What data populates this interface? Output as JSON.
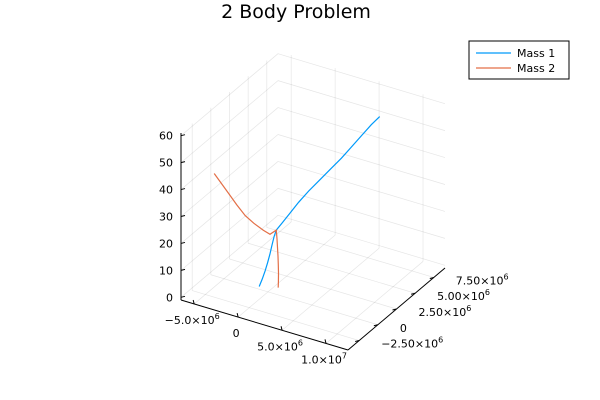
{
  "chart_data": {
    "type": "line3d",
    "title": "2 Body Problem",
    "xlabel": "",
    "ylabel": "",
    "zlabel": "",
    "x_ticks": [
      {
        "value": -5000000,
        "label": "−5.0×10",
        "exp": "6"
      },
      {
        "value": 0,
        "label": "0",
        "exp": ""
      },
      {
        "value": 5000000,
        "label": "5.0×10",
        "exp": "6"
      },
      {
        "value": 10000000,
        "label": "1.0×10",
        "exp": "7"
      }
    ],
    "y_ticks": [
      {
        "value": -2500000,
        "label": "−2.50×10",
        "exp": "6"
      },
      {
        "value": 0,
        "label": "0",
        "exp": ""
      },
      {
        "value": 2500000,
        "label": "2.50×10",
        "exp": "6"
      },
      {
        "value": 5000000,
        "label": "5.00×10",
        "exp": "6"
      },
      {
        "value": 7500000,
        "label": "7.50×10",
        "exp": "6"
      }
    ],
    "z_ticks": [
      {
        "value": 0,
        "label": "0"
      },
      {
        "value": 10,
        "label": "10"
      },
      {
        "value": 20,
        "label": "20"
      },
      {
        "value": 30,
        "label": "30"
      },
      {
        "value": 40,
        "label": "40"
      },
      {
        "value": 50,
        "label": "50"
      },
      {
        "value": 60,
        "label": "60"
      }
    ],
    "xlim": [
      -6500000,
      12500000
    ],
    "ylim": [
      -4000000,
      9000000
    ],
    "zlim": [
      -1,
      61
    ],
    "grid": true,
    "legend": "top-right",
    "series": [
      {
        "name": "Mass 1",
        "color": "#009AFA",
        "points": [
          [
            -1000000,
            0,
            0
          ],
          [
            -700000,
            60000,
            3
          ],
          [
            -450000,
            150000,
            6
          ],
          [
            -250000,
            250000,
            9
          ],
          [
            -100000,
            380000,
            12
          ],
          [
            10000,
            520000,
            15
          ],
          [
            100000,
            700000,
            18
          ],
          [
            180000,
            900000,
            20
          ],
          [
            500000,
            1300000,
            22
          ],
          [
            1000000,
            1700000,
            25
          ],
          [
            1700000,
            2100000,
            29
          ],
          [
            2500000,
            2500000,
            33
          ],
          [
            3400000,
            2900000,
            37
          ],
          [
            4300000,
            3300000,
            41
          ],
          [
            5200000,
            3700000,
            45
          ],
          [
            6000000,
            4100000,
            49
          ],
          [
            6800000,
            4500000,
            53
          ],
          [
            7600000,
            4900000,
            57
          ],
          [
            8300000,
            5200000,
            60
          ]
        ]
      },
      {
        "name": "Mass 2",
        "color": "#E36F47",
        "points": [
          [
            -4500000,
            -1900000,
            43
          ],
          [
            -3900000,
            -1600000,
            39
          ],
          [
            -3300000,
            -1300000,
            35
          ],
          [
            -2700000,
            -1000000,
            31
          ],
          [
            -2000000,
            -700000,
            27
          ],
          [
            -1300000,
            -350000,
            24
          ],
          [
            -600000,
            100000,
            21
          ],
          [
            -200000,
            500000,
            19
          ],
          [
            180000,
            900000,
            20
          ],
          [
            300000,
            850000,
            17
          ],
          [
            400000,
            800000,
            14
          ],
          [
            500000,
            750000,
            11
          ],
          [
            580000,
            700000,
            8
          ],
          [
            640000,
            650000,
            5
          ],
          [
            680000,
            600000,
            2
          ],
          [
            700000,
            550000,
            0
          ]
        ]
      }
    ]
  }
}
